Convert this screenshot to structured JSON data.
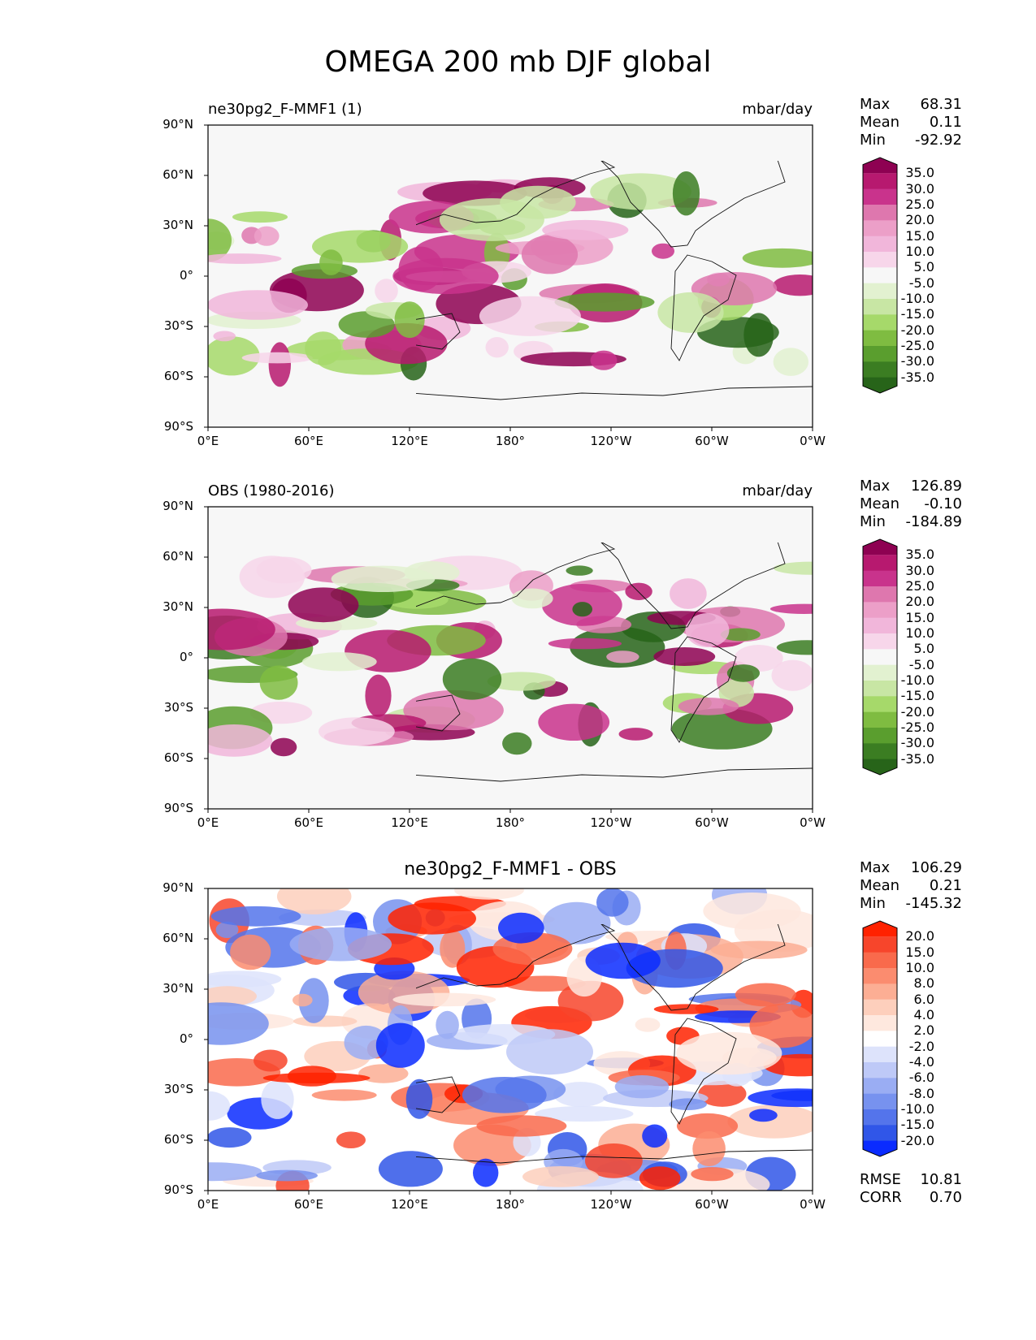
{
  "title": "OMEGA 200 mb DJF global",
  "x_ticks": [
    "0°E",
    "60°E",
    "120°E",
    "180°",
    "120°W",
    "60°W",
    "0°W"
  ],
  "y_ticks": [
    "90°N",
    "60°N",
    "30°N",
    "0°",
    "30°S",
    "60°S",
    "90°S"
  ],
  "panels": [
    {
      "left_title": "ne30pg2_F-MMF1 (1)",
      "center_title": "",
      "units": "mbar/day",
      "stats": [
        {
          "label": "Max",
          "value": "68.31"
        },
        {
          "label": "Mean",
          "value": "0.11"
        },
        {
          "label": "Min",
          "value": "-92.92"
        }
      ],
      "colorbar": {
        "labels": [
          "35.0",
          "30.0",
          "25.0",
          "20.0",
          "15.0",
          "10.0",
          "5.0",
          "-5.0",
          "-10.0",
          "-15.0",
          "-20.0",
          "-25.0",
          "-30.0",
          "-35.0"
        ],
        "colors": [
          "#8e0152",
          "#b7196f",
          "#c9338c",
          "#de77ae",
          "#ec9fc8",
          "#f1b6da",
          "#f7d6ea",
          "#f7f7f7",
          "#e2f1d0",
          "#c8e6a4",
          "#a6d96a",
          "#7fbc41",
          "#5a9e2e",
          "#3b7d22",
          "#276419"
        ]
      }
    },
    {
      "left_title": "OBS (1980-2016)",
      "center_title": "",
      "units": "mbar/day",
      "stats": [
        {
          "label": "Max",
          "value": "126.89"
        },
        {
          "label": "Mean",
          "value": "-0.10"
        },
        {
          "label": "Min",
          "value": "-184.89"
        }
      ],
      "colorbar": {
        "labels": [
          "35.0",
          "30.0",
          "25.0",
          "20.0",
          "15.0",
          "10.0",
          "5.0",
          "-5.0",
          "-10.0",
          "-15.0",
          "-20.0",
          "-25.0",
          "-30.0",
          "-35.0"
        ],
        "colors": [
          "#8e0152",
          "#b7196f",
          "#c9338c",
          "#de77ae",
          "#ec9fc8",
          "#f1b6da",
          "#f7d6ea",
          "#f7f7f7",
          "#e2f1d0",
          "#c8e6a4",
          "#a6d96a",
          "#7fbc41",
          "#5a9e2e",
          "#3b7d22",
          "#276419"
        ]
      }
    },
    {
      "left_title": "",
      "center_title": "ne30pg2_F-MMF1 - OBS",
      "units": "",
      "stats": [
        {
          "label": "Max",
          "value": "106.29"
        },
        {
          "label": "Mean",
          "value": "0.21"
        },
        {
          "label": "Min",
          "value": "-145.32"
        }
      ],
      "bottom_stats": [
        {
          "label": "RMSE",
          "value": "10.81"
        },
        {
          "label": "CORR",
          "value": "0.70"
        }
      ],
      "colorbar": {
        "labels": [
          "20.0",
          "15.0",
          "10.0",
          "8.0",
          "6.0",
          "4.0",
          "2.0",
          "-2.0",
          "-4.0",
          "-6.0",
          "-8.0",
          "-10.0",
          "-15.0",
          "-20.0"
        ],
        "colors": [
          "#ff2200",
          "#f7452b",
          "#f96a4c",
          "#fb8c6f",
          "#fcae94",
          "#fdcfbc",
          "#fee8de",
          "#ffffff",
          "#dde3fb",
          "#bec9f7",
          "#9aadf3",
          "#7792ef",
          "#5474eb",
          "#3056e8",
          "#0a2bff"
        ]
      }
    }
  ]
}
